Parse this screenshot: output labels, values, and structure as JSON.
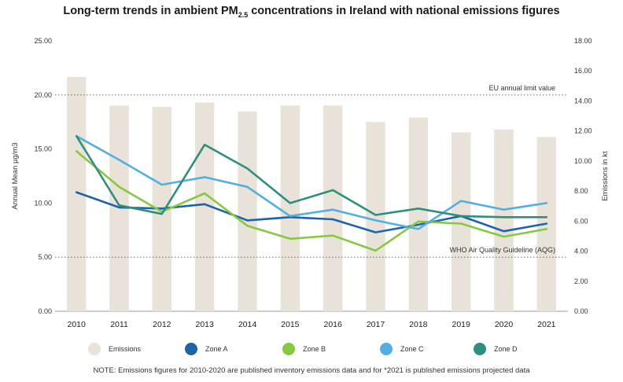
{
  "title_main": "Long-term trends in ambient PM",
  "title_sub": "2.5",
  "title_rest": " concentrations in Ireland with national emissions figures",
  "note": "NOTE: Emissions figures for 2010-2020 are published inventory emissions data and for *2021 is published emissions projected data",
  "chart_data": {
    "type": "bar+line",
    "categories": [
      "2010",
      "2011",
      "2012",
      "2013",
      "2014",
      "2015",
      "2016",
      "2017",
      "2018",
      "2019",
      "2020",
      "2021"
    ],
    "ylabel": "Annual Mean µg/m3",
    "y2label": "Emissions in kt",
    "ylim": [
      0,
      25
    ],
    "y2lim": [
      0,
      18
    ],
    "yticks": [
      "0.00",
      "5.00",
      "10.00",
      "15.00",
      "20.00",
      "25.00"
    ],
    "y2ticks": [
      "0.00",
      "2.00",
      "4.00",
      "6.00",
      "8.00",
      "10.00",
      "12.00",
      "14.00",
      "16.00",
      "18.00"
    ],
    "bars": {
      "name": "Emissions",
      "color": "#e8e2d8",
      "values": [
        15.6,
        13.7,
        13.6,
        13.9,
        13.3,
        13.7,
        13.7,
        12.6,
        12.9,
        11.9,
        12.1,
        11.6
      ]
    },
    "series": [
      {
        "name": "Zone A",
        "color": "#1f63a8",
        "values": [
          11.0,
          9.6,
          9.5,
          9.9,
          8.4,
          8.7,
          8.5,
          7.3,
          8.0,
          8.8,
          7.4,
          8.1
        ]
      },
      {
        "name": "Zone B",
        "color": "#86c93f",
        "values": [
          14.8,
          11.5,
          9.2,
          10.9,
          7.9,
          6.7,
          7.0,
          5.6,
          8.3,
          8.1,
          6.9,
          7.6
        ]
      },
      {
        "name": "Zone C",
        "color": "#53aee2",
        "values": [
          16.2,
          14.0,
          11.7,
          12.4,
          11.5,
          8.8,
          9.4,
          8.4,
          7.6,
          10.2,
          9.4,
          10.0
        ]
      },
      {
        "name": "Zone D",
        "color": "#2f8f7f",
        "values": [
          16.2,
          9.8,
          9.0,
          15.4,
          13.2,
          10.0,
          11.2,
          8.9,
          9.5,
          8.8,
          8.7,
          8.7
        ]
      }
    ],
    "annotations": [
      {
        "text": "EU annual limit value",
        "y": 20
      },
      {
        "text": "WHO Air Quality Guideline (AQG)",
        "y": 5
      }
    ],
    "legend_position": "bottom"
  }
}
